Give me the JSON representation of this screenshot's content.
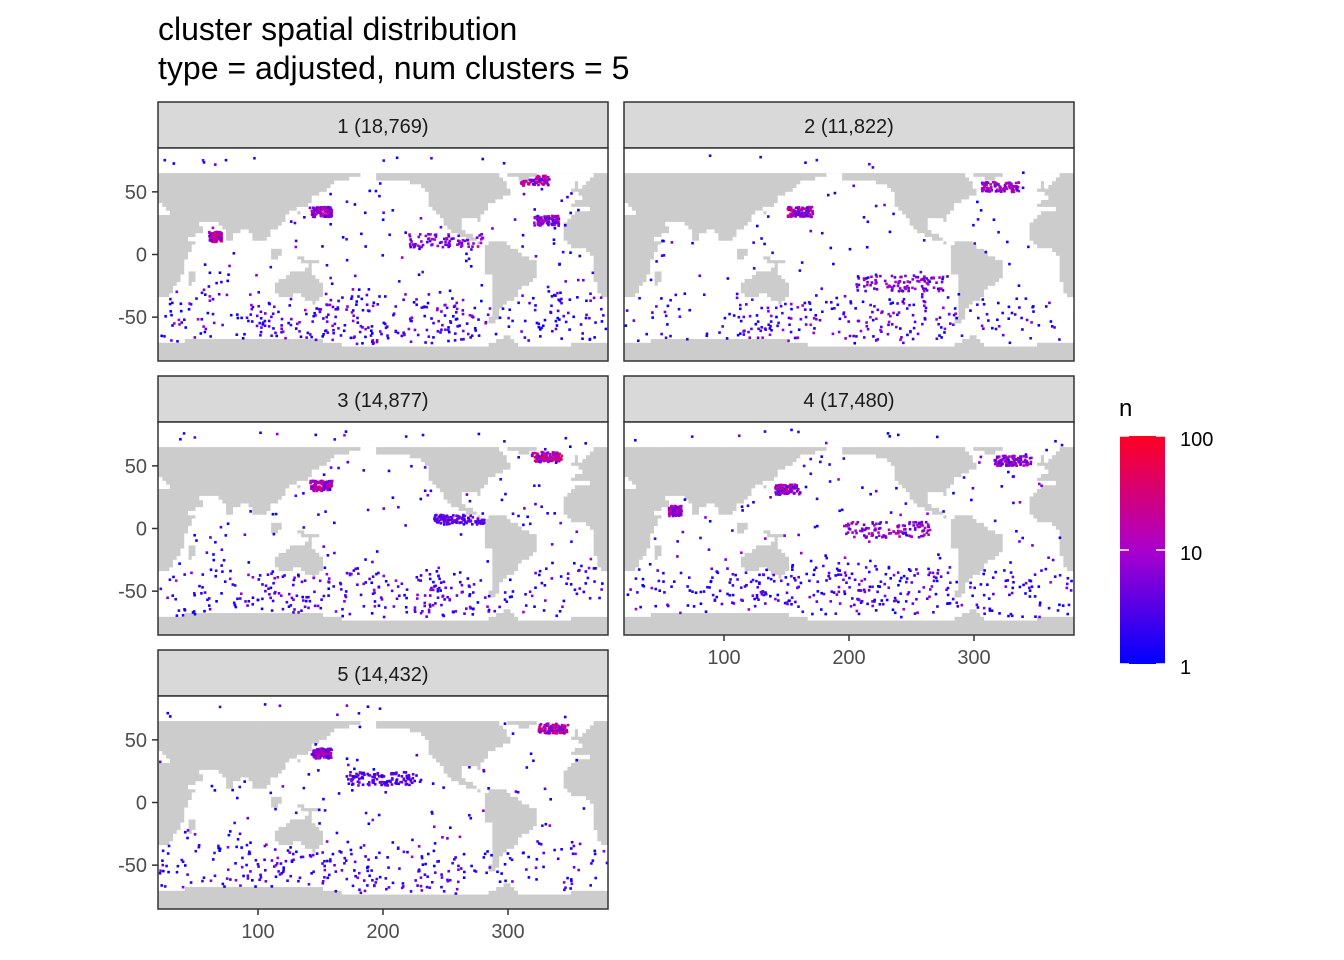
{
  "chart_data": {
    "type": "heatmap",
    "title": "cluster spatial distribution",
    "subtitle": "type = adjusted, num clusters = 5",
    "xlabel": "",
    "ylabel": "",
    "xlim": [
      20,
      380
    ],
    "ylim": [
      -85,
      85
    ],
    "x_ticks": [
      100,
      200,
      300
    ],
    "y_ticks": [
      50,
      0,
      -50
    ],
    "x_tick_labels": [
      "100",
      "200",
      "300"
    ],
    "y_tick_labels": [
      "50",
      "0",
      "-50"
    ],
    "grid": true,
    "land_color": "#cccccc",
    "ocean_color": "#ffffff",
    "legend": {
      "title": "n",
      "scale": "log10",
      "low": 1,
      "high": 100,
      "ticks": [
        100,
        10,
        1
      ],
      "tick_labels": [
        "100",
        "10",
        "1"
      ],
      "colors": [
        "#0000ff",
        "#aa00cc",
        "#ff0022"
      ],
      "placement": "right"
    },
    "panels": [
      {
        "label": "1 (18,769)",
        "cluster": 1,
        "count": 18769
      },
      {
        "label": "2 (11,822)",
        "cluster": 2,
        "count": 11822
      },
      {
        "label": "3 (14,877)",
        "cluster": 3,
        "count": 14877
      },
      {
        "label": "4 (17,480)",
        "cluster": 4,
        "count": 17480
      },
      {
        "label": "5 (14,432)",
        "cluster": 5,
        "count": 14432
      }
    ],
    "hotspots": [
      [
        {
          "lon": 150,
          "lat": 35,
          "spread": 8,
          "level": 0.55
        },
        {
          "lon": 65,
          "lat": 15,
          "spread": 5,
          "level": 0.7
        },
        {
          "lon": 320,
          "lat": 60,
          "spread": 12,
          "level": 0.6
        },
        {
          "lon": 250,
          "lat": 12,
          "spread": 30,
          "level": 0.45
        },
        {
          "lon": 330,
          "lat": 28,
          "spread": 10,
          "level": 0.5
        },
        {
          "lon": 180,
          "lat": -55,
          "spread": 90,
          "level": 0.35
        }
      ],
      [
        {
          "lon": 160,
          "lat": 35,
          "spread": 10,
          "level": 0.6
        },
        {
          "lon": 320,
          "lat": 55,
          "spread": 15,
          "level": 0.55
        },
        {
          "lon": 240,
          "lat": -22,
          "spread": 35,
          "level": 0.45
        },
        {
          "lon": 200,
          "lat": -52,
          "spread": 90,
          "level": 0.4
        }
      ],
      [
        {
          "lon": 150,
          "lat": 35,
          "spread": 9,
          "level": 0.6
        },
        {
          "lon": 330,
          "lat": 58,
          "spread": 12,
          "level": 0.75
        },
        {
          "lon": 180,
          "lat": -50,
          "spread": 95,
          "level": 0.35
        },
        {
          "lon": 260,
          "lat": 8,
          "spread": 20,
          "level": 0.3
        }
      ],
      [
        {
          "lon": 150,
          "lat": 32,
          "spread": 10,
          "level": 0.55
        },
        {
          "lon": 60,
          "lat": 15,
          "spread": 5,
          "level": 0.6
        },
        {
          "lon": 230,
          "lat": 0,
          "spread": 35,
          "level": 0.5
        },
        {
          "lon": 330,
          "lat": 55,
          "spread": 15,
          "level": 0.5
        },
        {
          "lon": 190,
          "lat": -45,
          "spread": 90,
          "level": 0.3
        }
      ],
      [
        {
          "lon": 150,
          "lat": 40,
          "spread": 8,
          "level": 0.5
        },
        {
          "lon": 335,
          "lat": 60,
          "spread": 12,
          "level": 0.65
        },
        {
          "lon": 200,
          "lat": 20,
          "spread": 30,
          "level": 0.3
        },
        {
          "lon": 180,
          "lat": -55,
          "spread": 95,
          "level": 0.3
        }
      ]
    ]
  }
}
